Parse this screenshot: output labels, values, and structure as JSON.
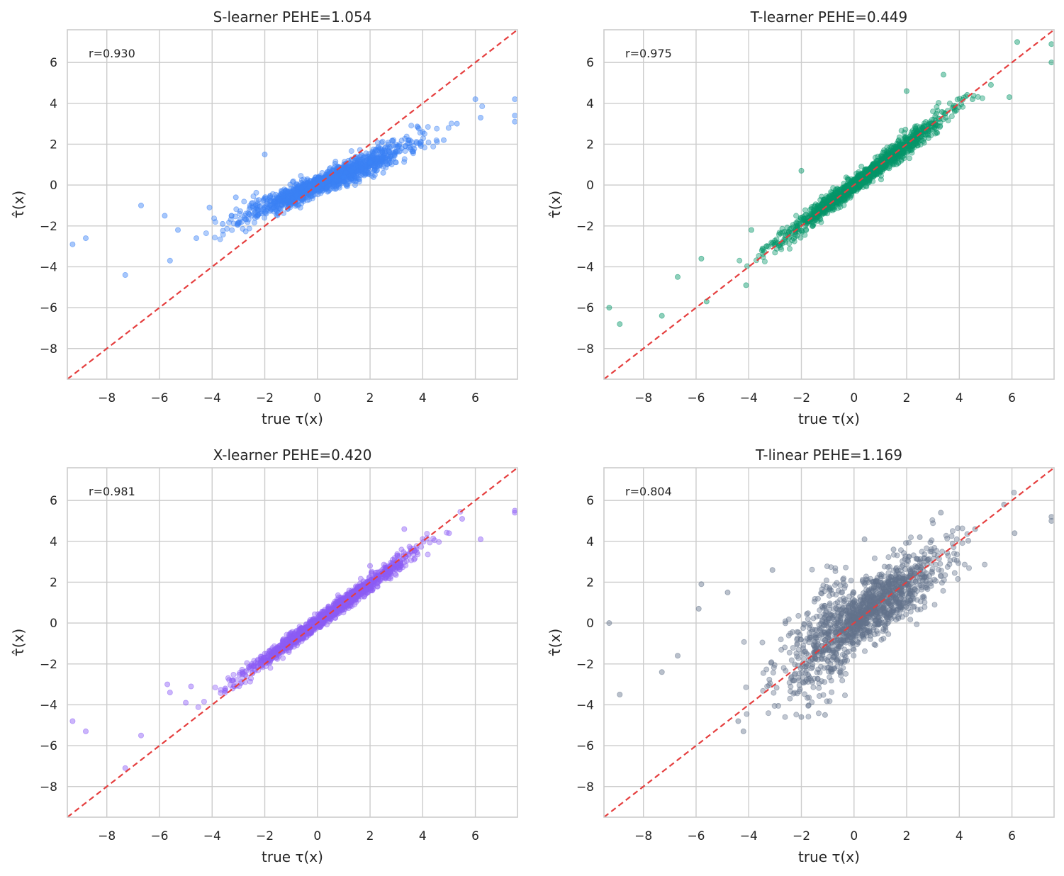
{
  "chart_data": [
    {
      "type": "scatter",
      "title": "S-learner  PEHE=1.054",
      "xlabel": "true τ(x)",
      "ylabel": "τ̂(x)",
      "annotation": "r=0.930",
      "xlim": [
        -9.5,
        7.6
      ],
      "ylim": [
        -9.5,
        7.6
      ],
      "xticks": [
        -8,
        -6,
        -4,
        -2,
        0,
        2,
        4,
        6
      ],
      "yticks": [
        -8,
        -6,
        -4,
        -2,
        0,
        2,
        4,
        6
      ],
      "xtick_labels": [
        "−8",
        "−6",
        "−4",
        "−2",
        "0",
        "2",
        "4",
        "6"
      ],
      "ytick_labels": [
        "−8",
        "−6",
        "−4",
        "−2",
        "0",
        "2",
        "4",
        "6"
      ],
      "grid": true,
      "reference_line": "y = x",
      "point_color": "#3b82f6",
      "line_color": "#e53e3e",
      "sample_points": [
        [
          -9.3,
          -2.9
        ],
        [
          -8.8,
          -2.6
        ],
        [
          -7.3,
          -4.4
        ],
        [
          -6.7,
          -1.0
        ],
        [
          -5.8,
          -1.5
        ],
        [
          -5.6,
          -3.7
        ],
        [
          -5.3,
          -2.2
        ],
        [
          -4.6,
          -2.6
        ],
        [
          -4.1,
          -1.1
        ],
        [
          -3.6,
          -1.9
        ],
        [
          -3.1,
          -0.6
        ],
        [
          -2.0,
          1.5
        ],
        [
          -2.5,
          -0.9
        ],
        [
          -1.2,
          -0.3
        ],
        [
          0.0,
          -0.2
        ],
        [
          1.0,
          0.4
        ],
        [
          2.0,
          1.1
        ],
        [
          2.5,
          0.6
        ],
        [
          3.2,
          1.8
        ],
        [
          4.0,
          2.6
        ],
        [
          4.8,
          2.2
        ],
        [
          5.3,
          3.0
        ],
        [
          6.0,
          4.2
        ],
        [
          6.2,
          3.3
        ],
        [
          7.5,
          4.2
        ],
        [
          7.5,
          3.4
        ],
        [
          7.5,
          3.1
        ]
      ]
    },
    {
      "type": "scatter",
      "title": "T-learner  PEHE=0.449",
      "xlabel": "true τ(x)",
      "ylabel": "τ̂(x)",
      "annotation": "r=0.975",
      "xlim": [
        -9.5,
        7.6
      ],
      "ylim": [
        -9.5,
        7.6
      ],
      "xticks": [
        -8,
        -6,
        -4,
        -2,
        0,
        2,
        4,
        6
      ],
      "yticks": [
        -8,
        -6,
        -4,
        -2,
        0,
        2,
        4,
        6
      ],
      "xtick_labels": [
        "−8",
        "−6",
        "−4",
        "−2",
        "0",
        "2",
        "4",
        "6"
      ],
      "ytick_labels": [
        "−8",
        "−6",
        "−4",
        "−2",
        "0",
        "2",
        "4",
        "6"
      ],
      "grid": true,
      "reference_line": "y = x",
      "point_color": "#059669",
      "line_color": "#e53e3e",
      "sample_points": [
        [
          -9.3,
          -6.0
        ],
        [
          -8.9,
          -6.8
        ],
        [
          -7.3,
          -6.4
        ],
        [
          -6.7,
          -4.5
        ],
        [
          -5.8,
          -3.6
        ],
        [
          -5.6,
          -5.7
        ],
        [
          -4.1,
          -4.9
        ],
        [
          -3.9,
          -2.2
        ],
        [
          -3.5,
          -3.2
        ],
        [
          -2.0,
          0.7
        ],
        [
          -1.5,
          -1.5
        ],
        [
          0.0,
          0.0
        ],
        [
          1.0,
          1.0
        ],
        [
          2.0,
          4.6
        ],
        [
          3.4,
          5.4
        ],
        [
          4.5,
          4.2
        ],
        [
          5.2,
          4.9
        ],
        [
          5.9,
          4.3
        ],
        [
          6.2,
          7.0
        ],
        [
          7.5,
          6.9
        ],
        [
          7.5,
          6.0
        ]
      ]
    },
    {
      "type": "scatter",
      "title": "X-learner  PEHE=0.420",
      "xlabel": "true τ(x)",
      "ylabel": "τ̂(x)",
      "annotation": "r=0.981",
      "xlim": [
        -9.5,
        7.6
      ],
      "ylim": [
        -9.5,
        7.6
      ],
      "xticks": [
        -8,
        -6,
        -4,
        -2,
        0,
        2,
        4,
        6
      ],
      "yticks": [
        -8,
        -6,
        -4,
        -2,
        0,
        2,
        4,
        6
      ],
      "xtick_labels": [
        "−8",
        "−6",
        "−4",
        "−2",
        "0",
        "2",
        "4",
        "6"
      ],
      "ytick_labels": [
        "−8",
        "−6",
        "−4",
        "−2",
        "0",
        "2",
        "4",
        "6"
      ],
      "grid": true,
      "reference_line": "y = x",
      "point_color": "#8b5cf6",
      "line_color": "#e53e3e",
      "sample_points": [
        [
          -9.3,
          -4.8
        ],
        [
          -8.8,
          -5.3
        ],
        [
          -7.3,
          -7.1
        ],
        [
          -6.7,
          -5.5
        ],
        [
          -5.7,
          -3.0
        ],
        [
          -5.6,
          -3.4
        ],
        [
          -5.0,
          -3.9
        ],
        [
          -4.8,
          -3.1
        ],
        [
          -3.5,
          -3.2
        ],
        [
          -2.0,
          -1.5
        ],
        [
          0.0,
          0.0
        ],
        [
          1.0,
          1.2
        ],
        [
          2.0,
          2.8
        ],
        [
          3.3,
          4.6
        ],
        [
          5.0,
          4.4
        ],
        [
          5.5,
          5.1
        ],
        [
          6.2,
          4.1
        ],
        [
          7.5,
          5.5
        ],
        [
          7.5,
          5.4
        ]
      ]
    },
    {
      "type": "scatter",
      "title": "T-linear  PEHE=1.169",
      "xlabel": "true τ(x)",
      "ylabel": "τ̂(x)",
      "annotation": "r=0.804",
      "xlim": [
        -9.5,
        7.6
      ],
      "ylim": [
        -9.5,
        7.6
      ],
      "xticks": [
        -8,
        -6,
        -4,
        -2,
        0,
        2,
        4,
        6
      ],
      "yticks": [
        -8,
        -6,
        -4,
        -2,
        0,
        2,
        4,
        6
      ],
      "xtick_labels": [
        "−8",
        "−6",
        "−4",
        "−2",
        "0",
        "2",
        "4",
        "6"
      ],
      "ytick_labels": [
        "−8",
        "−6",
        "−4",
        "−2",
        "0",
        "2",
        "4",
        "6"
      ],
      "grid": true,
      "reference_line": "y = x",
      "point_color": "#64748b",
      "line_color": "#e53e3e",
      "sample_points": [
        [
          -9.3,
          0.0
        ],
        [
          -8.9,
          -3.5
        ],
        [
          -7.3,
          -2.4
        ],
        [
          -6.7,
          -1.6
        ],
        [
          -5.8,
          1.9
        ],
        [
          -5.9,
          0.7
        ],
        [
          -4.8,
          1.5
        ],
        [
          -4.4,
          -4.8
        ],
        [
          -4.2,
          -5.3
        ],
        [
          -3.1,
          2.6
        ],
        [
          -2.0,
          -4.6
        ],
        [
          -1.1,
          -4.5
        ],
        [
          0.4,
          4.1
        ],
        [
          1.5,
          3.6
        ],
        [
          2.5,
          4.2
        ],
        [
          3.3,
          5.4
        ],
        [
          4.6,
          4.6
        ],
        [
          5.7,
          5.8
        ],
        [
          6.1,
          4.4
        ],
        [
          7.5,
          5.2
        ],
        [
          7.5,
          5.0
        ]
      ]
    }
  ]
}
